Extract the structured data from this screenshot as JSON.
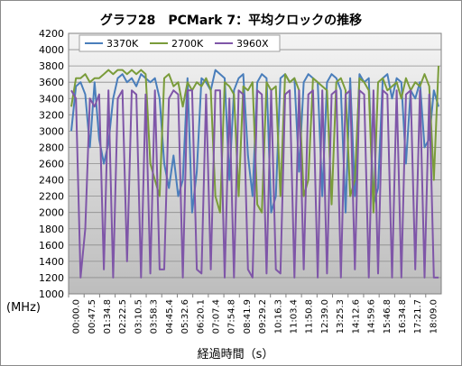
{
  "chart_data": {
    "type": "line",
    "title": "グラフ28　PCMark 7：平均クロックの推移",
    "xlabel": "経過時間（s）",
    "ylabel": "(MHz)",
    "ylim": [
      1000,
      4200
    ],
    "yticks": [
      1000,
      1200,
      1400,
      1600,
      1800,
      2000,
      2200,
      2400,
      2600,
      2800,
      3000,
      3200,
      3400,
      3600,
      3800,
      4000,
      4200
    ],
    "xticks": [
      "00:00.0",
      "00:47.5",
      "01:34.8",
      "02:22.5",
      "03:10.5",
      "03:58.3",
      "04:45.4",
      "05:32.6",
      "06:20.1",
      "07:07.4",
      "07:54.8",
      "08:41.9",
      "09:29.2",
      "10:16.3",
      "11:03.4",
      "11:50.8",
      "12:39.0",
      "13:25.3",
      "14:12.6",
      "14:59.6",
      "15:46.8",
      "16:34.8",
      "17:21.7",
      "18:09.0"
    ],
    "grid": true,
    "legend_position": "top-left",
    "series": [
      {
        "name": "3370K",
        "color": "#4a7ebb",
        "values": [
          3000,
          3550,
          3600,
          3450,
          2800,
          3600,
          2900,
          2600,
          2850,
          3400,
          3650,
          3700,
          3600,
          3650,
          3550,
          3700,
          3650,
          3600,
          3650,
          3400,
          2600,
          2300,
          2700,
          2200,
          2400,
          3650,
          2000,
          2500,
          3650,
          3600,
          3500,
          3750,
          3700,
          3650,
          2400,
          3500,
          3650,
          3700,
          2700,
          2200,
          3600,
          3700,
          3650,
          2000,
          2200,
          3650,
          3700,
          3600,
          3650,
          2500,
          3600,
          3700,
          3650,
          3600,
          2200,
          3600,
          3700,
          3650,
          3500,
          2000,
          3650,
          2200,
          3700,
          3600,
          3650,
          2100,
          2300,
          3650,
          3700,
          3400,
          3650,
          3600,
          2600,
          3500,
          3400,
          3600,
          2800,
          2900,
          3500,
          3300
        ]
      },
      {
        "name": "2700K",
        "color": "#7a9c3a",
        "values": [
          3300,
          3650,
          3650,
          3700,
          3600,
          3650,
          3650,
          3700,
          3750,
          3700,
          3750,
          3750,
          3700,
          3750,
          3700,
          3750,
          3700,
          2600,
          2400,
          2200,
          3650,
          3700,
          3550,
          3600,
          3300,
          3600,
          3500,
          3600,
          3550,
          3650,
          3500,
          2200,
          2000,
          3600,
          3550,
          3450,
          2200,
          3550,
          3500,
          3600,
          2100,
          2000,
          3600,
          3500,
          3550,
          2200,
          3700,
          3600,
          3650,
          3500,
          2200,
          2400,
          3650,
          3600,
          3550,
          3500,
          2100,
          3600,
          3650,
          3500,
          2200,
          2400,
          3650,
          3600,
          3500,
          2000,
          3600,
          3650,
          3500,
          3550,
          3600,
          3400,
          3650,
          3500,
          3600,
          3550,
          3700,
          3550,
          2400,
          3800
        ]
      },
      {
        "name": "3960X",
        "color": "#7f56a8",
        "values": [
          3500,
          3400,
          1200,
          1800,
          3400,
          3300,
          3450,
          1300,
          3500,
          1200,
          3400,
          3500,
          1400,
          3500,
          3450,
          1200,
          3450,
          1250,
          3500,
          1300,
          1300,
          3400,
          3500,
          3450,
          1200,
          3500,
          3500,
          1300,
          1250,
          3450,
          1300,
          3500,
          3500,
          1200,
          3400,
          1200,
          3500,
          3450,
          1300,
          1200,
          3500,
          3450,
          1250,
          3500,
          1300,
          1250,
          3450,
          3500,
          1200,
          3500,
          1300,
          3450,
          3500,
          1200,
          3500,
          1250,
          3450,
          3500,
          1200,
          3450,
          3500,
          1300,
          3500,
          3450,
          1200,
          3500,
          1250,
          3500,
          3450,
          1200,
          3500,
          1200,
          3450,
          3500,
          1300,
          3500,
          1200,
          3450,
          1200,
          1200
        ]
      }
    ]
  }
}
